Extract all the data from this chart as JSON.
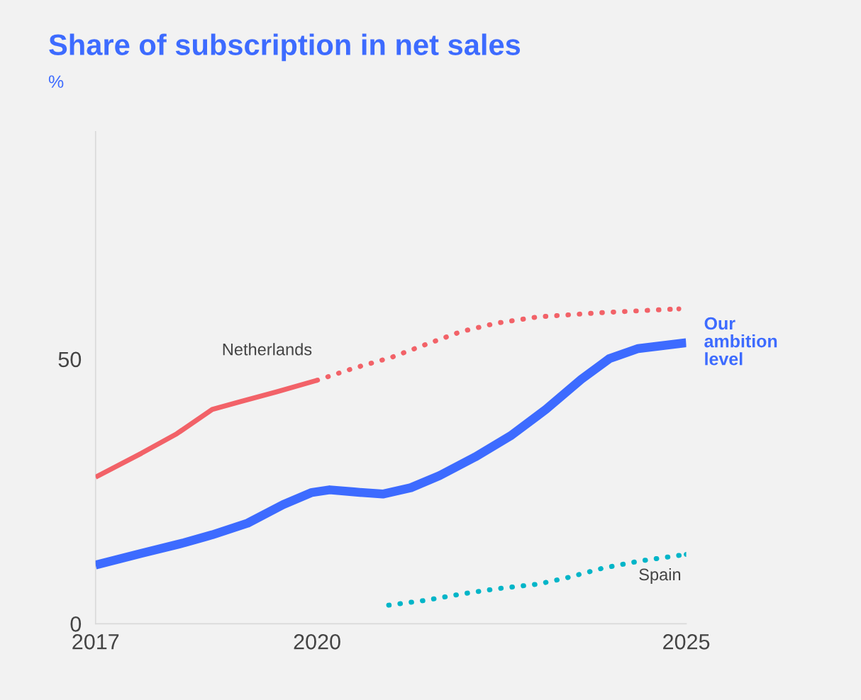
{
  "chart_data": {
    "type": "line",
    "title": "Share of subscription in net sales",
    "subtitle": "%",
    "xlim": [
      2017,
      2025
    ],
    "xticks": [
      2017,
      2020,
      2025
    ],
    "ylim": [
      0,
      93
    ],
    "yticks": [
      0,
      50
    ],
    "grid": false,
    "legend": false,
    "marker": "none",
    "series": [
      {
        "name": "Netherlands",
        "color": "#f26268",
        "line_style": "solid",
        "x": [
          2017,
          2017.62,
          2018.1,
          2018.58,
          2018.97,
          2019.45,
          2020
        ],
        "values": [
          27.7,
          32.2,
          35.9,
          40.5,
          42.0,
          43.8,
          46.0
        ]
      },
      {
        "color": "#f26268",
        "line_style": "dotted",
        "x": [
          2020,
          2020.5,
          2021,
          2021.46,
          2021.95,
          2022.43,
          2023,
          2023.87,
          2024.9
        ],
        "values": [
          46.0,
          48.3,
          50.3,
          52.7,
          55.2,
          56.8,
          58.0,
          58.8,
          59.5
        ]
      },
      {
        "name": "Our ambition level",
        "color": "#3d6bff",
        "line_style": "solid",
        "x": [
          2017,
          2017.62,
          2018.2,
          2018.58,
          2019.06,
          2019.54,
          2019.93,
          2020.17,
          2020.5,
          2020.89,
          2021.27,
          2021.66,
          2022.14,
          2022.62,
          2023.1,
          2023.58,
          2023.96,
          2024.35,
          2025
        ],
        "values": [
          11.1,
          13.3,
          15.3,
          16.8,
          19.0,
          22.5,
          24.8,
          25.3,
          24.9,
          24.5,
          25.7,
          28.0,
          31.5,
          35.5,
          40.5,
          46.2,
          50.1,
          52.0,
          53.1
        ]
      },
      {
        "name": "Spain",
        "color": "#00b5c8",
        "line_style": "dotted",
        "x": [
          2020.97,
          2021.46,
          2021.95,
          2022.43,
          2023,
          2023.39,
          2023.87,
          2024.35,
          2025
        ],
        "values": [
          3.5,
          4.4,
          5.6,
          6.6,
          7.5,
          8.7,
          10.5,
          11.8,
          13.1
        ]
      }
    ]
  }
}
